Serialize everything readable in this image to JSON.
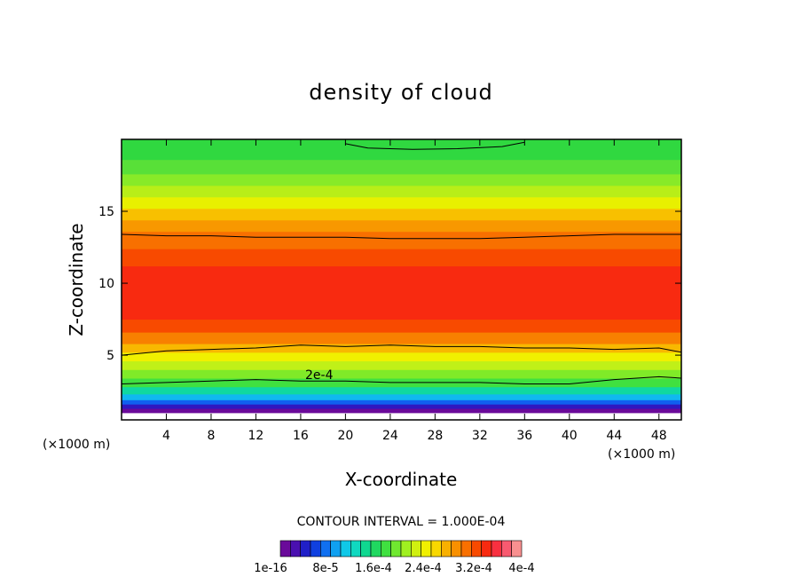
{
  "chart_data": {
    "type": "heatmap",
    "title": "density of cloud",
    "xlabel": "X-coordinate",
    "ylabel": "Z-coordinate",
    "x_unit": "(×1000 m)",
    "xlim": [
      0,
      50
    ],
    "ylim": [
      0.5,
      20
    ],
    "x_ticks": [
      4,
      8,
      12,
      16,
      20,
      24,
      28,
      32,
      36,
      40,
      44,
      48
    ],
    "y_ticks": [
      5,
      10,
      15
    ],
    "contour_interval_label": "CONTOUR INTERVAL = 1.000E-04",
    "contour_annotation": "2e-4",
    "colorbar": {
      "labels": [
        "1e-16",
        "8e-5",
        "1.6e-4",
        "2.4e-4",
        "3.2e-4",
        "4e-4"
      ],
      "colors": [
        "#6a0a9a",
        "#4a10b0",
        "#2020c8",
        "#1040e0",
        "#1070f0",
        "#10a0f0",
        "#10c8e8",
        "#10d8c0",
        "#10d890",
        "#20d860",
        "#40e040",
        "#70e830",
        "#a0f020",
        "#d0f010",
        "#f0f000",
        "#f8d800",
        "#f8b000",
        "#f89000",
        "#f87000",
        "#f84a00",
        "#f82a10",
        "#f83040",
        "#f85a70",
        "#f89090"
      ],
      "range": [
        0,
        0.0004
      ]
    },
    "bands": [
      {
        "z_min": 0.5,
        "z_max": 1.0,
        "color": "#ffffff"
      },
      {
        "z_min": 1.0,
        "z_max": 1.3,
        "color": "#6a0a9a"
      },
      {
        "z_min": 1.3,
        "z_max": 1.6,
        "color": "#3018c0"
      },
      {
        "z_min": 1.6,
        "z_max": 1.9,
        "color": "#1060f0"
      },
      {
        "z_min": 1.9,
        "z_max": 2.3,
        "color": "#10b8f0"
      },
      {
        "z_min": 2.3,
        "z_max": 2.8,
        "color": "#10d8a0"
      },
      {
        "z_min": 2.8,
        "z_max": 3.4,
        "color": "#40e040"
      },
      {
        "z_min": 3.4,
        "z_max": 4.0,
        "color": "#80ea28"
      },
      {
        "z_min": 4.0,
        "z_max": 4.6,
        "color": "#c0f018"
      },
      {
        "z_min": 4.6,
        "z_max": 5.2,
        "color": "#f0f000"
      },
      {
        "z_min": 5.2,
        "z_max": 5.8,
        "color": "#f8b800"
      },
      {
        "z_min": 5.8,
        "z_max": 6.6,
        "color": "#f88000"
      },
      {
        "z_min": 6.6,
        "z_max": 7.5,
        "color": "#f84a00"
      },
      {
        "z_min": 7.5,
        "z_max": 11.2,
        "color": "#f82a10"
      },
      {
        "z_min": 11.2,
        "z_max": 12.4,
        "color": "#f84a00"
      },
      {
        "z_min": 12.4,
        "z_max": 13.6,
        "color": "#f87000"
      },
      {
        "z_min": 13.6,
        "z_max": 14.4,
        "color": "#f89800"
      },
      {
        "z_min": 14.4,
        "z_max": 15.2,
        "color": "#f8c000"
      },
      {
        "z_min": 15.2,
        "z_max": 16.0,
        "color": "#e8f000"
      },
      {
        "z_min": 16.0,
        "z_max": 16.8,
        "color": "#b8ee18"
      },
      {
        "z_min": 16.8,
        "z_max": 17.6,
        "color": "#88ea28"
      },
      {
        "z_min": 17.6,
        "z_max": 18.6,
        "color": "#58e038"
      },
      {
        "z_min": 18.6,
        "z_max": 20.0,
        "color": "#30d840"
      }
    ],
    "contour_lines": [
      {
        "name": "z-3.0",
        "points": [
          [
            0,
            3.0
          ],
          [
            4,
            3.1
          ],
          [
            8,
            3.2
          ],
          [
            12,
            3.3
          ],
          [
            16,
            3.2
          ],
          [
            20,
            3.2
          ],
          [
            24,
            3.1
          ],
          [
            28,
            3.1
          ],
          [
            32,
            3.1
          ],
          [
            36,
            3.0
          ],
          [
            40,
            3.0
          ],
          [
            44,
            3.3
          ],
          [
            48,
            3.5
          ],
          [
            50,
            3.4
          ]
        ]
      },
      {
        "name": "z-5.2",
        "points": [
          [
            0,
            5.0
          ],
          [
            4,
            5.3
          ],
          [
            8,
            5.4
          ],
          [
            12,
            5.5
          ],
          [
            16,
            5.7
          ],
          [
            20,
            5.6
          ],
          [
            24,
            5.7
          ],
          [
            28,
            5.6
          ],
          [
            32,
            5.6
          ],
          [
            36,
            5.5
          ],
          [
            40,
            5.5
          ],
          [
            44,
            5.4
          ],
          [
            48,
            5.5
          ],
          [
            50,
            5.2
          ]
        ]
      },
      {
        "name": "z-13.3",
        "points": [
          [
            0,
            13.4
          ],
          [
            4,
            13.3
          ],
          [
            8,
            13.3
          ],
          [
            12,
            13.2
          ],
          [
            16,
            13.2
          ],
          [
            20,
            13.2
          ],
          [
            24,
            13.1
          ],
          [
            28,
            13.1
          ],
          [
            32,
            13.1
          ],
          [
            36,
            13.2
          ],
          [
            40,
            13.3
          ],
          [
            44,
            13.4
          ],
          [
            48,
            13.4
          ],
          [
            50,
            13.4
          ]
        ]
      },
      {
        "name": "z-19.4",
        "points": [
          [
            20,
            19.7
          ],
          [
            22,
            19.4
          ],
          [
            26,
            19.3
          ],
          [
            30,
            19.35
          ],
          [
            34,
            19.5
          ],
          [
            36,
            19.8
          ]
        ]
      }
    ]
  }
}
